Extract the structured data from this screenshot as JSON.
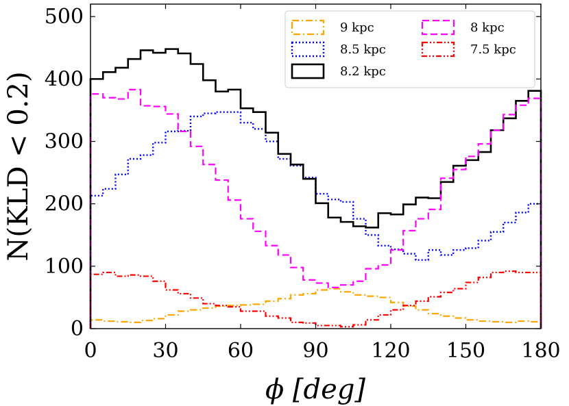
{
  "chart_data": {
    "type": "histogram-step",
    "title": "",
    "xlabel": "ϕ [deg]",
    "ylabel": "N(KLD < 0.2)",
    "xlim": [
      0,
      180
    ],
    "ylim": [
      0,
      520
    ],
    "xticks": [
      0,
      30,
      60,
      90,
      120,
      150,
      180
    ],
    "yticks": [
      0,
      100,
      200,
      300,
      400,
      500
    ],
    "xtick_labels": [
      "0",
      "30",
      "60",
      "90",
      "120",
      "150",
      "180"
    ],
    "ytick_labels": [
      "0",
      "100",
      "200",
      "300",
      "400",
      "500"
    ],
    "bin_width": 5,
    "bin_edges_start": 0,
    "grid": false,
    "legend_position": "top-right",
    "series": [
      {
        "name": "9 kpc",
        "color": "#ffa500",
        "linestyle": "dashdot",
        "values": [
          14,
          12,
          11,
          10,
          13,
          16,
          22,
          28,
          30,
          33,
          36,
          37,
          38,
          39,
          44,
          48,
          54,
          56,
          62,
          64,
          59,
          54,
          52,
          50,
          42,
          36,
          30,
          24,
          20,
          17,
          14,
          12,
          11,
          10,
          12,
          11
        ]
      },
      {
        "name": "8.5 kpc",
        "color": "#0000ff",
        "linestyle": "dotted",
        "values": [
          213,
          224,
          247,
          272,
          278,
          298,
          316,
          317,
          340,
          345,
          347,
          347,
          330,
          320,
          300,
          272,
          261,
          242,
          216,
          207,
          203,
          176,
          150,
          133,
          127,
          120,
          110,
          126,
          118,
          126,
          129,
          141,
          155,
          170,
          186,
          200
        ]
      },
      {
        "name": "8.2 kpc",
        "color": "#000000",
        "linestyle": "solid",
        "values": [
          400,
          411,
          418,
          432,
          446,
          442,
          448,
          441,
          424,
          398,
          380,
          383,
          353,
          347,
          314,
          280,
          263,
          240,
          201,
          178,
          171,
          164,
          162,
          185,
          183,
          199,
          210,
          209,
          235,
          261,
          270,
          283,
          318,
          337,
          365,
          381
        ]
      },
      {
        "name": "8 kpc",
        "color": "#ff00ff",
        "linestyle": "dashed",
        "values": [
          376,
          370,
          368,
          383,
          357,
          356,
          344,
          316,
          292,
          263,
          238,
          206,
          176,
          156,
          133,
          118,
          98,
          78,
          73,
          66,
          70,
          76,
          96,
          102,
          126,
          157,
          176,
          191,
          241,
          255,
          276,
          296,
          318,
          343,
          358,
          369
        ]
      },
      {
        "name": "7.5 kpc",
        "color": "#ff0000",
        "linestyle": "dashdotdot",
        "values": [
          87,
          90,
          84,
          86,
          84,
          76,
          62,
          56,
          49,
          40,
          37,
          35,
          28,
          28,
          20,
          17,
          10,
          9,
          5,
          5,
          3,
          6,
          14,
          22,
          30,
          37,
          44,
          51,
          58,
          64,
          74,
          82,
          90,
          92,
          90,
          90
        ]
      }
    ],
    "legend_order": [
      "9 kpc",
      "8 kpc",
      "8.5 kpc",
      "7.5 kpc",
      "8.2 kpc"
    ]
  }
}
